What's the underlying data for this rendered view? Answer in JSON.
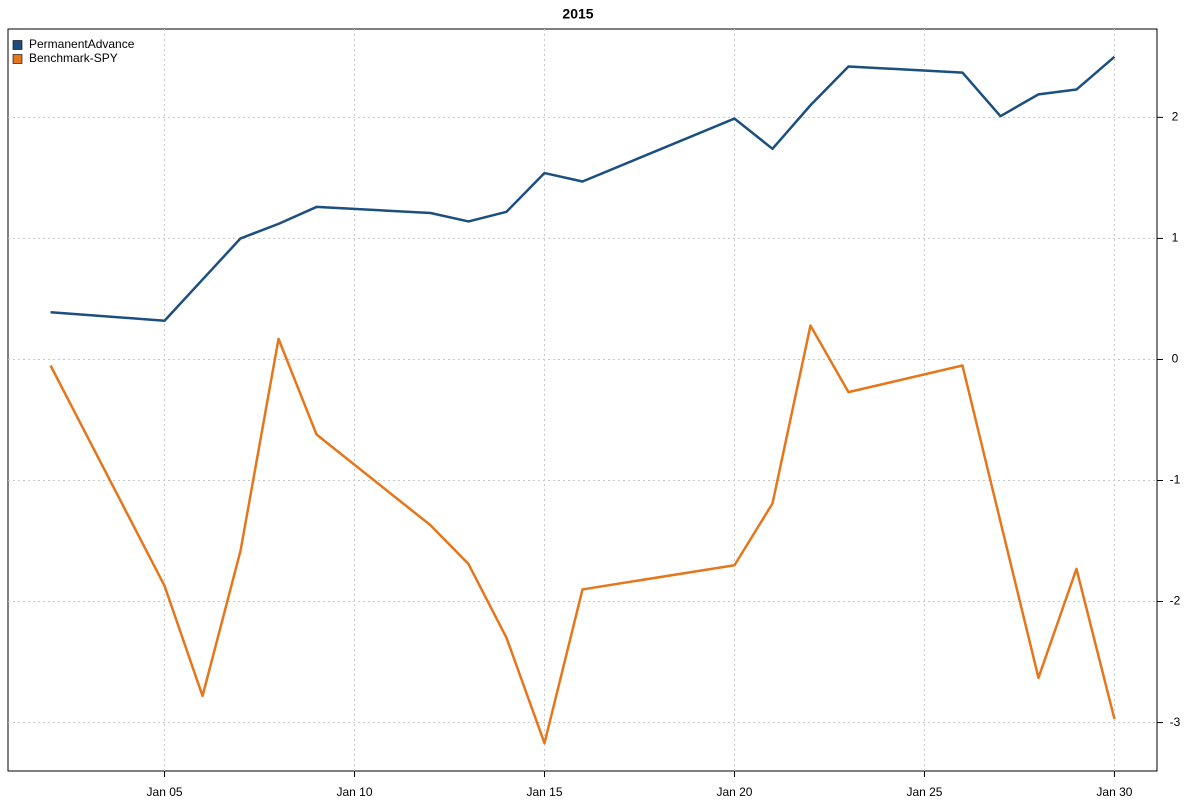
{
  "chart_data": {
    "type": "line",
    "title": "2015",
    "x": [
      "Jan 02",
      "Jan 05",
      "Jan 06",
      "Jan 07",
      "Jan 08",
      "Jan 09",
      "Jan 12",
      "Jan 13",
      "Jan 14",
      "Jan 15",
      "Jan 16",
      "Jan 20",
      "Jan 21",
      "Jan 22",
      "Jan 23",
      "Jan 26",
      "Jan 27",
      "Jan 28",
      "Jan 29",
      "Jan 30"
    ],
    "xticks": [
      "Jan 05",
      "Jan 10",
      "Jan 15",
      "Jan 20",
      "Jan 25",
      "Jan 30"
    ],
    "series": [
      {
        "name": "PermanentAdvance",
        "color": "#1b4f80",
        "values": [
          0.39,
          0.32,
          0.66,
          1.0,
          1.12,
          1.26,
          1.21,
          1.14,
          1.22,
          1.54,
          1.47,
          1.99,
          1.74,
          2.1,
          2.42,
          2.37,
          2.01,
          2.19,
          2.23,
          2.5
        ]
      },
      {
        "name": "Benchmark-SPY",
        "color": "#e6761b",
        "values": [
          -0.05,
          -1.87,
          -2.78,
          -1.58,
          0.17,
          -0.62,
          -1.37,
          -1.69,
          -2.3,
          -3.17,
          -1.9,
          -1.7,
          -1.19,
          0.28,
          -0.27,
          -0.05,
          -1.34,
          -2.63,
          -1.73,
          -2.97
        ]
      }
    ],
    "ylim": [
      -3.4,
      2.73
    ],
    "yticks": [
      -3,
      -2,
      -1,
      0,
      1,
      2
    ],
    "grid": true,
    "legend": "topleft"
  }
}
